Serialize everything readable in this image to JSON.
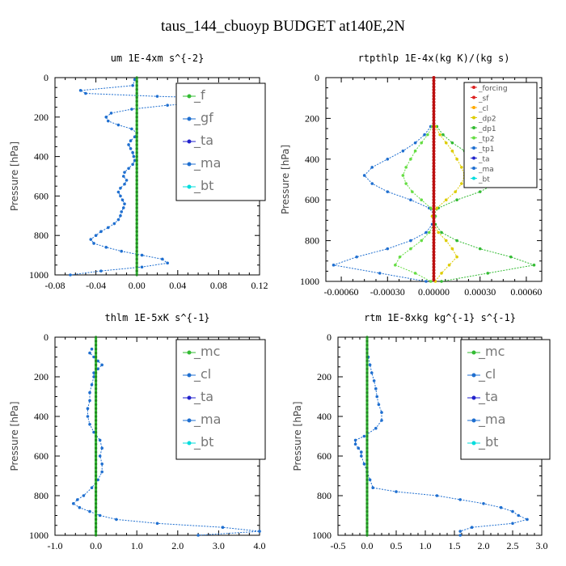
{
  "figure_title": "taus_144_cbuoyp  BUDGET at140E,2N",
  "chart_data": [
    {
      "type": "line",
      "title": "um  1E-4xm s^{-2}",
      "ylabel": "Pressure [hPa]",
      "xlim": [
        -0.08,
        0.12
      ],
      "ylim": [
        0,
        1000
      ],
      "y_inverted": true,
      "xticks": [
        "-0.08",
        "-0.04",
        "0.00",
        "0.04",
        "0.08",
        "0.12"
      ],
      "xtick_values": [
        -0.08,
        -0.04,
        0.0,
        0.04,
        0.08,
        0.12
      ],
      "yticks": [
        "0",
        "200",
        "400",
        "600",
        "800",
        "1000"
      ],
      "legend": [
        "_f",
        "_gf",
        "_ta",
        "_ma",
        "_bt"
      ],
      "legend_colors": [
        "#33bb33",
        "#1f6fd0",
        "#2222cc",
        "#1f6fd0",
        "#00dddd"
      ],
      "legend_size": "big",
      "pressure": [
        10,
        40,
        65,
        80,
        95,
        105,
        115,
        125,
        140,
        160,
        180,
        200,
        220,
        240,
        260,
        280,
        300,
        320,
        340,
        360,
        380,
        400,
        420,
        440,
        460,
        480,
        500,
        520,
        540,
        560,
        580,
        600,
        620,
        640,
        660,
        680,
        700,
        720,
        740,
        760,
        780,
        800,
        820,
        840,
        860,
        880,
        900,
        920,
        940,
        960,
        980,
        1000
      ],
      "series": [
        {
          "name": "_gf",
          "color": "#1f6fd0",
          "x": [
            -0.002,
            -0.004,
            -0.055,
            -0.05,
            0.02,
            0.09,
            0.097,
            0.07,
            0.03,
            -0.005,
            -0.025,
            -0.03,
            -0.028,
            -0.018,
            -0.005,
            0.0,
            -0.002,
            -0.006,
            -0.008,
            -0.006,
            -0.004,
            -0.003,
            -0.002,
            -0.004,
            -0.008,
            -0.012,
            -0.013,
            -0.01,
            -0.012,
            -0.016,
            -0.018,
            -0.016,
            -0.014,
            -0.012,
            -0.013,
            -0.015,
            -0.016,
            -0.018,
            -0.022,
            -0.028,
            -0.035,
            -0.04,
            -0.045,
            -0.042,
            -0.03,
            -0.015,
            0.005,
            0.025,
            0.03,
            0.005,
            -0.035,
            -0.065
          ]
        },
        {
          "name": "_f",
          "color": "#33bb33",
          "x": [
            0,
            0,
            0,
            0,
            0,
            0,
            0,
            0,
            0,
            0,
            0,
            0,
            0,
            0,
            0,
            0,
            0,
            0,
            0,
            0,
            0,
            0,
            0,
            0,
            0,
            0,
            0,
            0,
            0,
            0,
            0,
            0,
            0,
            0,
            0,
            0,
            0,
            0,
            0,
            0,
            0,
            0,
            0,
            0,
            0,
            0,
            0,
            0,
            0,
            0,
            0,
            0
          ]
        }
      ]
    },
    {
      "type": "line",
      "title": "rtpthlp  1E-4x(kg K)/(kg s)",
      "ylabel": "Pressure [hPa]",
      "xlim": [
        -0.0007,
        0.0007
      ],
      "ylim": [
        0,
        1000
      ],
      "y_inverted": true,
      "xticks": [
        "-0.00060",
        "-0.00030",
        "0.00000",
        "0.00030",
        "0.00060"
      ],
      "xtick_values": [
        -0.0006,
        -0.0003,
        0.0,
        0.0003,
        0.0006
      ],
      "yticks": [
        "0",
        "200",
        "400",
        "600",
        "800",
        "1000"
      ],
      "legend": [
        "_forcing",
        "_sf",
        "_cl",
        "_dp2",
        "_dp1",
        "_tp2",
        "_tp1",
        "_ta",
        "_ma",
        "_bt"
      ],
      "legend_colors": [
        "#dd2222",
        "#dd2222",
        "#ffaa00",
        "#ddcc00",
        "#33bb33",
        "#66dd44",
        "#1f6fd0",
        "#2222cc",
        "#1f6fd0",
        "#00dddd"
      ],
      "legend_size": "small",
      "pressure": [
        240,
        280,
        320,
        360,
        400,
        440,
        480,
        520,
        560,
        600,
        640,
        680,
        720,
        760,
        800,
        840,
        880,
        920,
        960,
        1000
      ],
      "series": [
        {
          "name": "_dp1",
          "color": "#33bb33",
          "x": [
            2e-05,
            6e-05,
            0.00012,
            0.0002,
            0.0003,
            0.0004,
            0.00045,
            0.0004,
            0.0003,
            0.00015,
            3e-05,
            -1e-05,
            1e-05,
            5e-05,
            0.00015,
            0.0003,
            0.0005,
            0.00065,
            0.00035,
            5e-05
          ]
        },
        {
          "name": "_tp1",
          "color": "#1f6fd0",
          "x": [
            -2e-05,
            -6e-05,
            -0.00012,
            -0.0002,
            -0.0003,
            -0.0004,
            -0.00045,
            -0.0004,
            -0.0003,
            -0.00015,
            -3e-05,
            1e-05,
            -1e-05,
            -5e-05,
            -0.00015,
            -0.0003,
            -0.0005,
            -0.00065,
            -0.00035,
            -5e-05
          ]
        },
        {
          "name": "_tp2",
          "color": "#66dd44",
          "x": [
            -1e-05,
            -4e-05,
            -8e-05,
            -0.00012,
            -0.00015,
            -0.00018,
            -0.0002,
            -0.00018,
            -0.00014,
            -8e-05,
            -2e-05,
            1e-05,
            0.0,
            -3e-05,
            -8e-05,
            -0.00015,
            -0.00022,
            -0.00025,
            -0.00012,
            -2e-05
          ]
        },
        {
          "name": "_dp2",
          "color": "#ddcc00",
          "x": [
            1e-05,
            4e-05,
            8e-05,
            0.00012,
            0.00015,
            0.00018,
            0.0002,
            0.00018,
            0.00014,
            8e-05,
            2e-05,
            -1e-05,
            0.0,
            3e-05,
            8e-05,
            0.00012,
            0.00015,
            0.0001,
            5e-05,
            1e-05
          ]
        }
      ]
    },
    {
      "type": "line",
      "title": "thlm  1E-5xK  s^{-1}",
      "ylabel": "Pressure [hPa]",
      "xlim": [
        -1.0,
        4.0
      ],
      "ylim": [
        0,
        1000
      ],
      "y_inverted": true,
      "xticks": [
        "-1.0",
        "0.0",
        "1.0",
        "2.0",
        "3.0",
        "4.0"
      ],
      "xtick_values": [
        -1.0,
        0.0,
        1.0,
        2.0,
        3.0,
        4.0
      ],
      "yticks": [
        "0",
        "200",
        "400",
        "600",
        "800",
        "1000"
      ],
      "legend": [
        "_mc",
        "_cl",
        "_ta",
        "_ma",
        "_bt"
      ],
      "legend_colors": [
        "#33bb33",
        "#1f6fd0",
        "#2222cc",
        "#1f6fd0",
        "#00dddd"
      ],
      "legend_size": "big",
      "pressure": [
        60,
        80,
        100,
        120,
        140,
        160,
        180,
        200,
        240,
        280,
        320,
        360,
        400,
        440,
        480,
        520,
        560,
        600,
        640,
        680,
        720,
        760,
        800,
        820,
        840,
        860,
        880,
        900,
        920,
        940,
        960,
        980,
        1000
      ],
      "series": [
        {
          "name": "_cl",
          "color": "#1f6fd0",
          "x": [
            -0.1,
            -0.15,
            -0.05,
            0.05,
            0.15,
            0.05,
            -0.05,
            -0.05,
            -0.1,
            -0.15,
            -0.15,
            -0.2,
            -0.2,
            -0.15,
            -0.05,
            0.1,
            0.15,
            0.1,
            0.15,
            0.15,
            0.05,
            -0.1,
            -0.3,
            -0.45,
            -0.55,
            -0.4,
            -0.15,
            0.1,
            0.5,
            1.5,
            3.1,
            4.0,
            2.5
          ]
        },
        {
          "name": "_mc",
          "color": "#33bb33",
          "x": [
            0,
            0,
            0,
            0,
            0,
            0,
            0,
            0,
            0,
            0,
            0,
            0,
            0,
            0,
            0,
            0,
            0,
            0,
            0,
            0,
            0,
            0,
            0,
            0,
            0,
            0,
            0,
            0,
            0,
            0,
            0,
            0,
            0
          ]
        }
      ]
    },
    {
      "type": "line",
      "title": "rtm  1E-8xkg kg^{-1} s^{-1}",
      "ylabel": "Pressure [hPa]",
      "xlim": [
        -0.5,
        3.0
      ],
      "ylim": [
        0,
        1000
      ],
      "y_inverted": true,
      "xticks": [
        "-0.5",
        "0.0",
        "0.5",
        "1.0",
        "1.5",
        "2.0",
        "2.5",
        "3.0"
      ],
      "xtick_values": [
        -0.5,
        0.0,
        0.5,
        1.0,
        1.5,
        2.0,
        2.5,
        3.0
      ],
      "yticks": [
        "0",
        "200",
        "400",
        "600",
        "800",
        "1000"
      ],
      "legend": [
        "_mc",
        "_cl",
        "_ta",
        "_ma",
        "_bt"
      ],
      "legend_colors": [
        "#33bb33",
        "#1f6fd0",
        "#2222cc",
        "#1f6fd0",
        "#00dddd"
      ],
      "legend_size": "big",
      "pressure": [
        60,
        100,
        140,
        180,
        220,
        260,
        300,
        340,
        380,
        420,
        460,
        500,
        520,
        540,
        560,
        580,
        600,
        640,
        680,
        720,
        760,
        780,
        800,
        820,
        840,
        860,
        880,
        900,
        920,
        940,
        960,
        980,
        1000
      ],
      "series": [
        {
          "name": "_cl",
          "color": "#1f6fd0",
          "x": [
            0.0,
            0.02,
            0.05,
            0.08,
            0.12,
            0.15,
            0.17,
            0.2,
            0.25,
            0.25,
            0.15,
            -0.05,
            -0.2,
            -0.2,
            -0.15,
            -0.1,
            -0.1,
            -0.05,
            0.0,
            0.05,
            0.1,
            0.5,
            1.2,
            1.6,
            2.0,
            2.3,
            2.5,
            2.6,
            2.75,
            2.5,
            1.8,
            1.6,
            1.6
          ]
        },
        {
          "name": "_mc",
          "color": "#33bb33",
          "x": [
            0,
            0,
            0,
            0,
            0,
            0,
            0,
            0,
            0,
            0,
            0,
            0,
            0,
            0,
            0,
            0,
            0,
            0,
            0,
            0,
            0,
            0,
            0,
            0,
            0,
            0,
            0,
            0,
            0,
            0,
            0,
            0,
            0
          ]
        }
      ]
    }
  ]
}
